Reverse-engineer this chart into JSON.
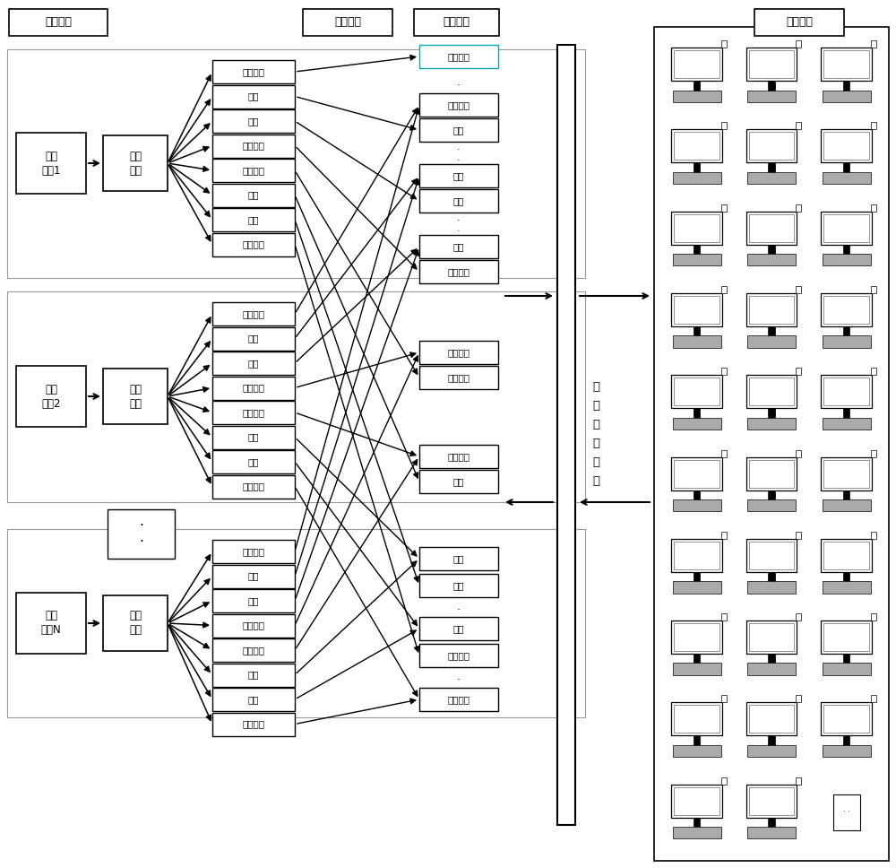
{
  "bg_color": "#ffffff",
  "header_input": "输入参数",
  "header_parallel_class": "并行分类",
  "header_dist_storage": "分布存储",
  "header_parallel_compute": "并行计算",
  "term_labels": [
    "采集\n终端1",
    "采集\n终端2",
    "采集\n终端N"
  ],
  "parser_label": "数据\n分解",
  "item_names": [
    "冻结示数",
    "电压",
    "电流",
    "心跳报文",
    "电表时钟",
    "功率",
    "事件",
    "电表参数"
  ],
  "resource_label": "资\n源\n动\n态\n分\n配",
  "dots_text": "·\n·",
  "single_dot": "·"
}
